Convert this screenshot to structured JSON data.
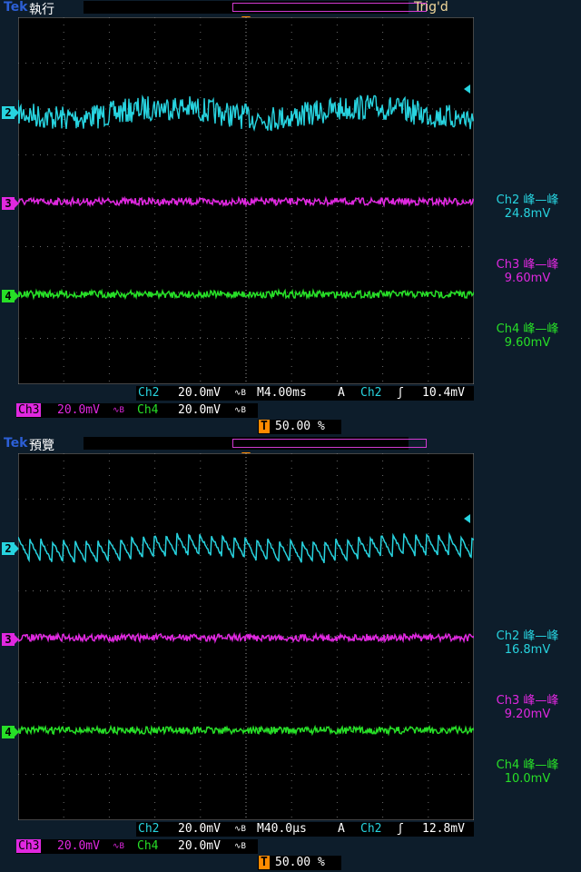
{
  "brand": "Tek",
  "panels": [
    {
      "mode": "執行",
      "trigger_status": "Trig'd",
      "trigger_marker": "T",
      "channels": [
        {
          "id": "2",
          "label": "Ch2",
          "scale": "20.0mV",
          "meas_name": "Ch2 峰—峰",
          "meas_value": "24.8mV"
        },
        {
          "id": "3",
          "label": "Ch3",
          "scale": "20.0mV",
          "meas_name": "Ch3 峰—峰",
          "meas_value": "9.60mV"
        },
        {
          "id": "4",
          "label": "Ch4",
          "scale": "20.0mV",
          "meas_name": "Ch4 峰—峰",
          "meas_value": "9.60mV"
        }
      ],
      "timebase": "M4.00ms",
      "trigger_mode": "A",
      "trigger_source": "Ch2",
      "trigger_slope": "ʃ",
      "trigger_level": "10.4mV",
      "trigger_position": "50.00 %",
      "bw_symbol": "∿B",
      "waveform_style": "noise"
    },
    {
      "mode": "預覽",
      "trigger_status": "",
      "trigger_marker": "T",
      "channels": [
        {
          "id": "2",
          "label": "Ch2",
          "scale": "20.0mV",
          "meas_name": "Ch2 峰—峰",
          "meas_value": "16.8mV"
        },
        {
          "id": "3",
          "label": "Ch3",
          "scale": "20.0mV",
          "meas_name": "Ch3 峰—峰",
          "meas_value": "9.20mV"
        },
        {
          "id": "4",
          "label": "Ch4",
          "scale": "20.0mV",
          "meas_name": "Ch4 峰—峰",
          "meas_value": "10.0mV"
        }
      ],
      "timebase": "M40.0μs",
      "trigger_mode": "A",
      "trigger_source": "Ch2",
      "trigger_slope": "ʃ",
      "trigger_level": "12.8mV",
      "trigger_position": "50.00 %",
      "bw_symbol": "∿B",
      "waveform_style": "sawtooth"
    }
  ],
  "colors": {
    "ch2": "#27d3df",
    "ch3": "#e028e0",
    "ch4": "#27df27",
    "trigger": "#ff8a00",
    "background": "#0d1d2b",
    "screen": "#000000"
  }
}
